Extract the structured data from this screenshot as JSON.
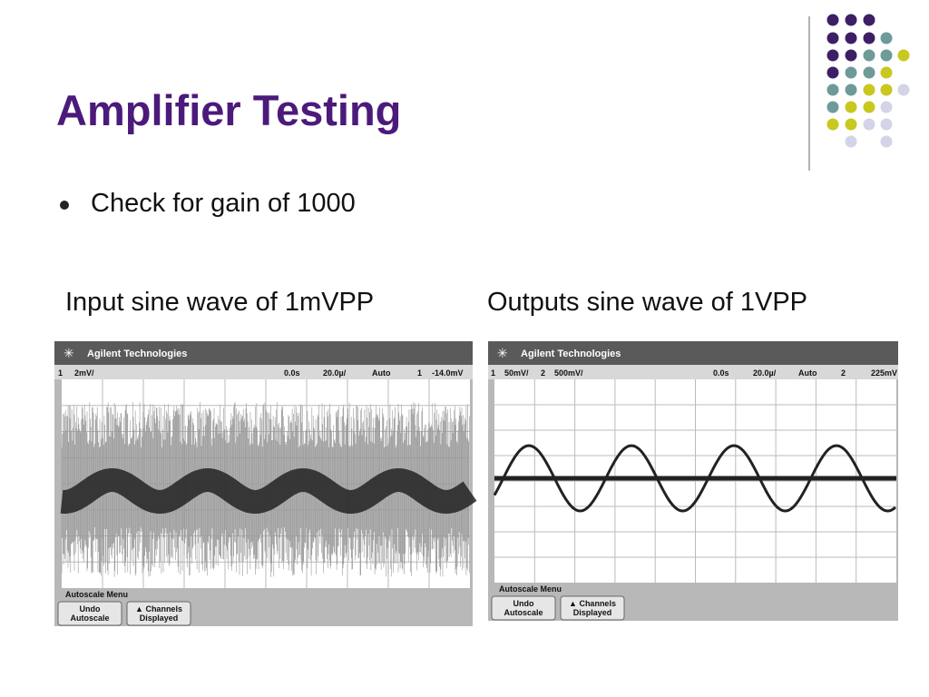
{
  "title": "Amplifier Testing",
  "bullets": [
    "Check for gain of 1000"
  ],
  "captions": [
    "Input sine wave of 1mVPP",
    "Outputs sine wave of 1VPP"
  ],
  "scopes": [
    {
      "brand": "Agilent Technologies",
      "status": [
        "1",
        "2mV/",
        "0.0s",
        "20.0µ/",
        "Auto",
        "1",
        "-14.0mV"
      ],
      "menu": "Autoscale Menu",
      "buttons": [
        [
          "Undo",
          "Autoscale"
        ],
        [
          "▲ Channels",
          "Displayed"
        ]
      ]
    },
    {
      "brand": "Agilent Technologies",
      "status": [
        "1",
        "50mV/",
        "2",
        "500mV/",
        "0.0s",
        "20.0µ/",
        "Auto",
        "2",
        "225mV"
      ],
      "menu": "Autoscale Menu",
      "buttons": [
        [
          "Undo",
          "Autoscale"
        ],
        [
          "▲ Channels",
          "Displayed"
        ]
      ]
    }
  ]
}
